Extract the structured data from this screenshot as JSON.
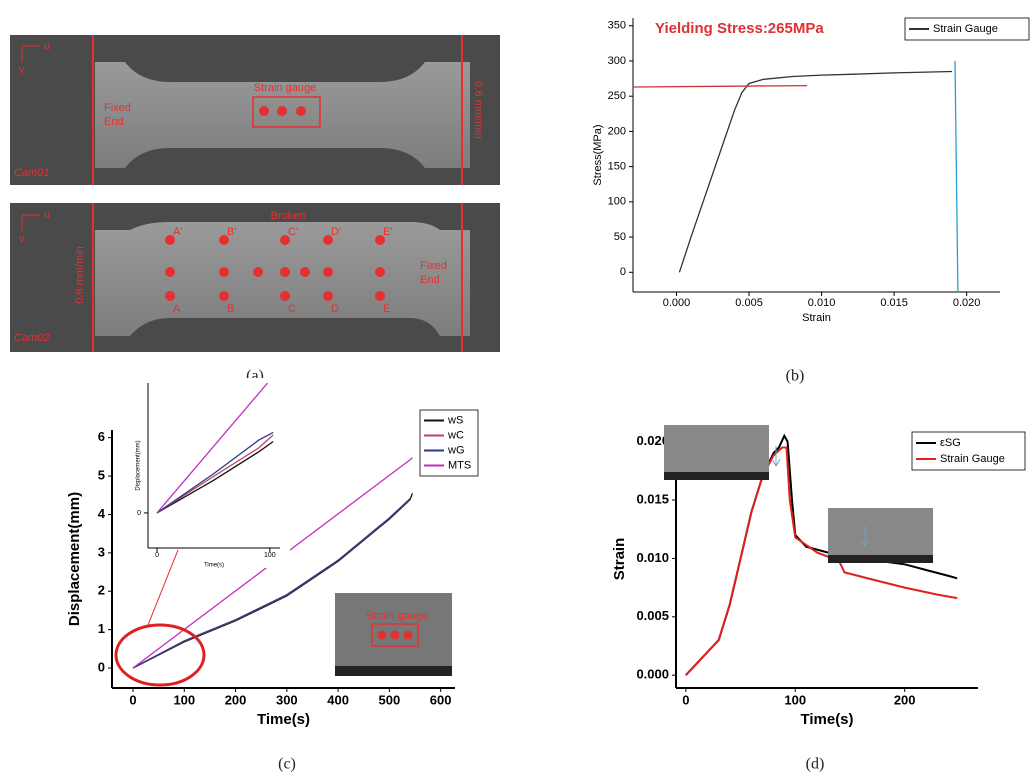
{
  "photos": {
    "cam01": {
      "label": "Cam01",
      "gauge": "Strain gauge",
      "fixed": [
        "Fixed",
        "End"
      ],
      "rate": "0.6 mm/min",
      "axis_u": "u",
      "axis_v": "v"
    },
    "cam02": {
      "label": "Cam02",
      "broken": "Broken",
      "fixed": [
        "Fixed",
        "End"
      ],
      "rate": "0.6 mm/min",
      "axis_u": "u",
      "axis_v": "v",
      "top_points": [
        "A'",
        "B'",
        "C'",
        "D'",
        "E'"
      ],
      "bottom_points": [
        "A",
        "B",
        "C",
        "D",
        "E"
      ]
    },
    "gauge_inset": "Strain gauge"
  },
  "captions": [
    "(a)",
    "(b)",
    "(c)",
    "(d)"
  ],
  "chart_data": [
    {
      "type": "line",
      "annotation": "Yielding Stress:265MPa",
      "x_label": "Strain",
      "y_label": "Stress(MPa)",
      "xlim": [
        -0.003,
        0.0223
      ],
      "ylim": [
        -28,
        361
      ],
      "xticks": [
        {
          "value": 0,
          "label": "0.000"
        },
        {
          "value": 0.005,
          "label": "0.005"
        },
        {
          "value": 0.01,
          "label": "0.010"
        },
        {
          "value": 0.015,
          "label": "0.015"
        },
        {
          "value": 0.02,
          "label": "0.020"
        }
      ],
      "yticks": [
        0,
        50,
        100,
        150,
        200,
        250,
        300,
        350
      ],
      "series": [
        {
          "name": "Strain Gauge",
          "color": "#333333",
          "x": [
            0.0002,
            0.001,
            0.002,
            0.003,
            0.004,
            0.0045,
            0.005,
            0.006,
            0.008,
            0.01,
            0.012,
            0.015,
            0.019
          ],
          "values": [
            0,
            50,
            110,
            170,
            230,
            255,
            268,
            274,
            278,
            280,
            281,
            283,
            285
          ]
        },
        {
          "color": "#d03030",
          "x": [
            -0.003,
            0.009
          ],
          "values": [
            263,
            265
          ]
        },
        {
          "color": "#2aa0d8",
          "x": [
            0.0192,
            0.0194
          ],
          "values": [
            300,
            -28
          ]
        }
      ]
    },
    {
      "type": "line",
      "x_label": "Time(s)",
      "y_label": "Displacement(mm)",
      "xlim": [
        -41,
        628
      ],
      "ylim": [
        -0.52,
        6.2
      ],
      "xticks": [
        0,
        100,
        200,
        300,
        400,
        500,
        600
      ],
      "yticks": [
        0,
        1,
        2,
        3,
        4,
        5,
        6
      ],
      "series": [
        {
          "name": "wS",
          "color": "#111111",
          "x": [
            0,
            100,
            200,
            300,
            400,
            500,
            540,
            545
          ],
          "values": [
            0,
            0.68,
            1.23,
            1.88,
            2.78,
            3.88,
            4.38,
            4.55
          ]
        },
        {
          "name": "wC",
          "color": "#c04060",
          "x": [
            0,
            100,
            200,
            300,
            400,
            500,
            540
          ],
          "values": [
            0,
            0.7,
            1.25,
            1.9,
            2.8,
            3.9,
            4.4
          ]
        },
        {
          "name": "wG",
          "color": "#2a3a8a",
          "x": [
            0,
            100,
            200,
            300,
            400,
            500,
            540
          ],
          "values": [
            0,
            0.71,
            1.26,
            1.91,
            2.81,
            3.91,
            4.41
          ]
        },
        {
          "name": "MTS",
          "color": "#c030c0",
          "x": [
            0,
            540,
            545
          ],
          "values": [
            0,
            5.42,
            5.48
          ]
        }
      ]
    },
    {
      "type": "line",
      "x_label": "Time(s)",
      "y_label": "Displacement(mm)",
      "xlim": [
        -8,
        109
      ],
      "ylim": [
        -0.27,
        1.0
      ],
      "xticks": [
        0,
        100
      ],
      "yticks": [
        0
      ],
      "series": [
        {
          "color": "#111111",
          "x": [
            0,
            50,
            90,
            103
          ],
          "values": [
            0,
            0.25,
            0.47,
            0.55
          ]
        },
        {
          "color": "#c04060",
          "x": [
            0,
            50,
            90,
            103
          ],
          "values": [
            0,
            0.28,
            0.5,
            0.6
          ]
        },
        {
          "color": "#2a3a8a",
          "x": [
            0,
            50,
            90,
            103
          ],
          "values": [
            0,
            0.3,
            0.56,
            0.62
          ]
        },
        {
          "color": "#c030c0",
          "x": [
            0,
            98
          ],
          "values": [
            0,
            1.0
          ]
        }
      ]
    },
    {
      "type": "line",
      "x_label": "Time(s)",
      "y_label": "Strain",
      "xlim": [
        -9,
        267
      ],
      "ylim": [
        -0.0011,
        0.021
      ],
      "xticks": [
        0,
        100,
        200
      ],
      "yticks": [
        {
          "value": 0,
          "label": "0.000"
        },
        {
          "value": 0.005,
          "label": "0.005"
        },
        {
          "value": 0.01,
          "label": "0.010"
        },
        {
          "value": 0.015,
          "label": "0.015"
        },
        {
          "value": 0.02,
          "label": "0.020"
        }
      ],
      "series": [
        {
          "name": "εSG",
          "color": "#000000",
          "x": [
            0,
            20,
            30,
            40,
            50,
            60,
            70,
            80,
            85,
            90,
            93,
            97,
            100,
            110,
            130,
            150,
            175,
            200,
            220,
            240,
            248
          ],
          "values": [
            0,
            0.002,
            0.003,
            0.006,
            0.01,
            0.014,
            0.017,
            0.019,
            0.0195,
            0.0205,
            0.02,
            0.015,
            0.012,
            0.011,
            0.0105,
            0.0105,
            0.0098,
            0.0095,
            0.009,
            0.0085,
            0.0083
          ]
        },
        {
          "name": "Strain Gauge",
          "color": "#e02020",
          "x": [
            0,
            20,
            30,
            40,
            50,
            60,
            70,
            80,
            88,
            92,
            95,
            100,
            120,
            140,
            145,
            170,
            200,
            230,
            248
          ],
          "values": [
            0,
            0.002,
            0.003,
            0.006,
            0.01,
            0.014,
            0.017,
            0.0188,
            0.0195,
            0.0195,
            0.015,
            0.0118,
            0.0105,
            0.0098,
            0.0088,
            0.0082,
            0.0075,
            0.0069,
            0.0066
          ]
        }
      ]
    }
  ]
}
